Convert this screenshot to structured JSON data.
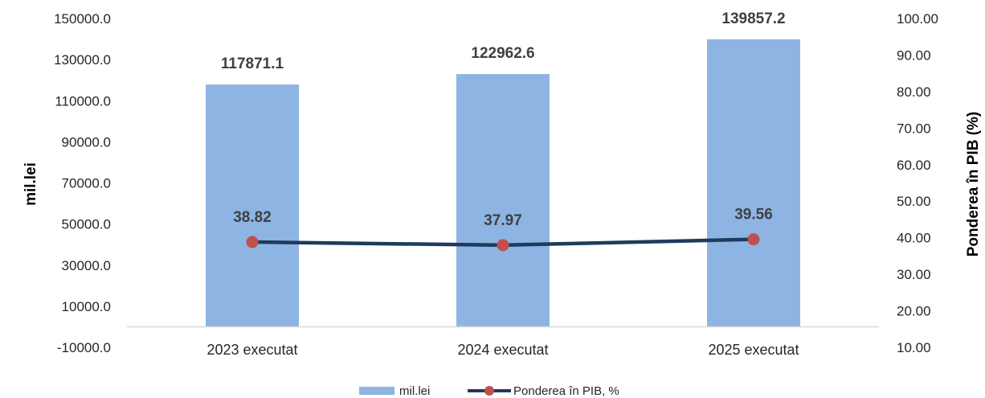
{
  "chart_data": {
    "type": "bar+line",
    "categories": [
      "2023 executat",
      "2024 executat",
      "2025 executat"
    ],
    "series": [
      {
        "name": "mil.lei",
        "type": "bar",
        "axis": "left",
        "color": "#8EB4E3",
        "values": [
          117871.1,
          122962.6,
          139857.2
        ],
        "labels": [
          "117871.1",
          "122962.6",
          "139857.2"
        ]
      },
      {
        "name": "Ponderea în PIB, %",
        "type": "line",
        "axis": "right",
        "line_color": "#1F3A5C",
        "marker_color": "#C0504D",
        "values": [
          38.82,
          37.97,
          39.56
        ],
        "labels": [
          "38.82",
          "37.97",
          "39.56"
        ]
      }
    ],
    "left_axis": {
      "label": "mil.lei",
      "min": -10000,
      "max": 150000,
      "ticks": [
        "-10000.0",
        "10000.0",
        "30000.0",
        "50000.0",
        "70000.0",
        "90000.0",
        "110000.0",
        "130000.0",
        "150000.0"
      ]
    },
    "right_axis": {
      "label": "Ponderea în PIB (%)",
      "min": 10,
      "max": 100,
      "ticks": [
        "10.00",
        "20.00",
        "30.00",
        "40.00",
        "50.00",
        "60.00",
        "70.00",
        "80.00",
        "90.00",
        "100.00"
      ]
    },
    "baseline": 0,
    "grid": false,
    "legend": {
      "position": "bottom",
      "items": [
        "mil.lei",
        "Ponderea în PIB, %"
      ]
    }
  }
}
